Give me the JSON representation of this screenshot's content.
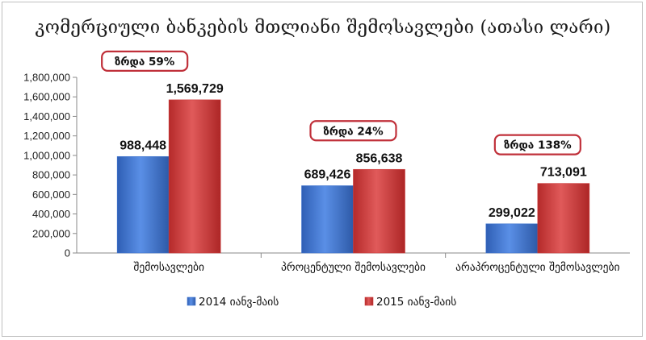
{
  "chart_data": {
    "type": "bar",
    "title": "კომერციული ბანკების მთლიანი შემოსავლები (ათასი ლარი)",
    "categories": [
      "შემოსავლები",
      "პროცენტული შემოსავლები",
      "არაპროცენტული შემოსავლები"
    ],
    "series": [
      {
        "name": "2014 იანვ-მაის",
        "values": [
          988448,
          689426,
          299022
        ],
        "color": "#3f74cf",
        "labels": [
          "988,448",
          "689,426",
          "299,022"
        ]
      },
      {
        "name": "2015 იანვ-მაის",
        "values": [
          1569729,
          856638,
          713091
        ],
        "color": "#cc3b3b",
        "labels": [
          "1,569,729",
          "856,638",
          "713,091"
        ]
      }
    ],
    "ylim": [
      0,
      1800000
    ],
    "yticks": [
      0,
      200000,
      400000,
      600000,
      800000,
      1000000,
      1200000,
      1400000,
      1600000,
      1800000
    ],
    "ytick_labels": [
      "0",
      "200,000",
      "400,000",
      "600,000",
      "800,000",
      "1,000,000",
      "1,200,000",
      "1,400,000",
      "1,600,000",
      "1,800,000"
    ],
    "annotations": [
      "ზრდა 59%",
      "ზრდა 24%",
      "ზრდა 138%"
    ],
    "grid": false,
    "legend_position": "bottom",
    "annotation_border_color": "#c0303a"
  }
}
